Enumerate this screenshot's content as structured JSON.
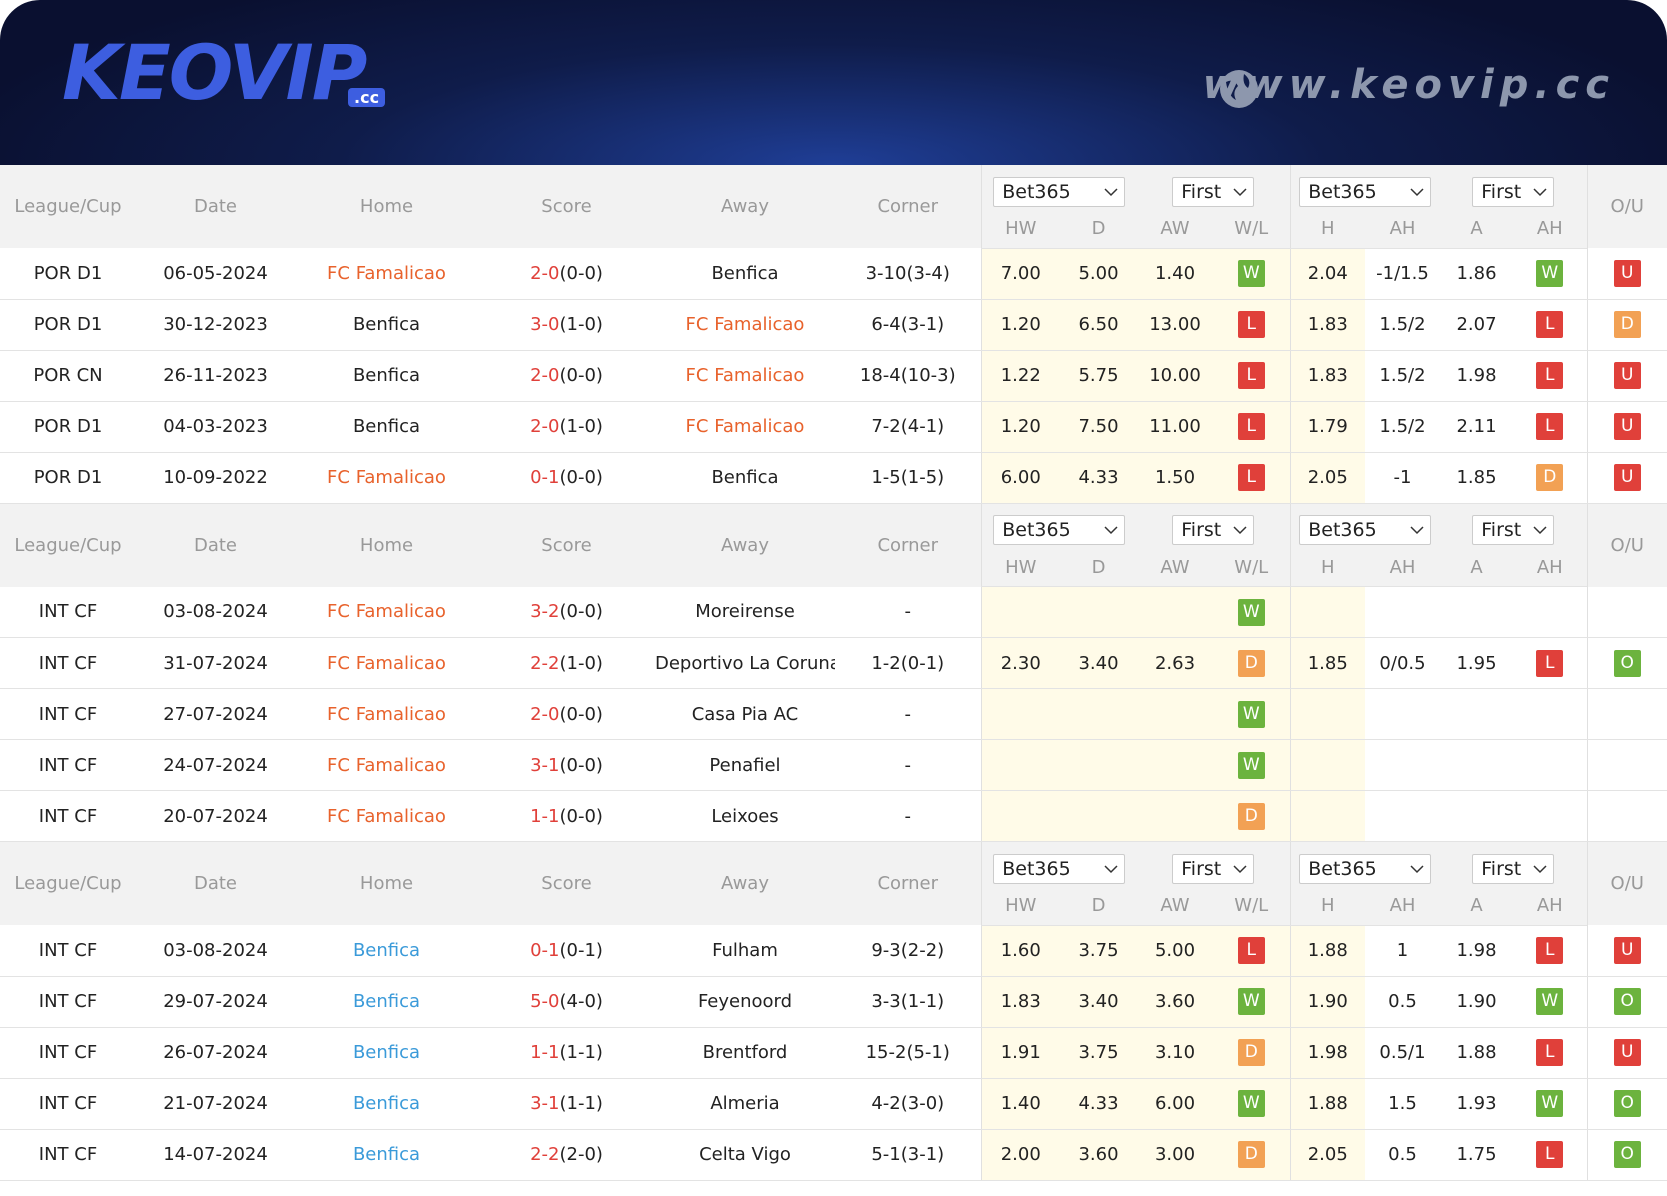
{
  "header": {
    "logo": "KEOVIP",
    "logo_sub": ".cc",
    "url": "www.keovip.cc"
  },
  "badge_colors": {
    "W": "#6cb33e",
    "L": "#e0403a",
    "D": "#f2a154",
    "U": "#e0403a",
    "O": "#6cb33e"
  },
  "tables": [
    {
      "highlight_color": "#e8622c",
      "header": {
        "columns": [
          "League/Cup",
          "Date",
          "Home",
          "Score",
          "Away",
          "Corner"
        ],
        "bookmakers": [
          "Bet365",
          "First",
          "Bet365",
          "First"
        ],
        "odds": [
          "HW",
          "D",
          "AW",
          "W/L",
          "H",
          "AH",
          "A",
          "AH"
        ],
        "ou": "O/U"
      },
      "rows": [
        {
          "highlight": "home",
          "cells": [
            "POR D1",
            "06-05-2024",
            "FC Famalicao",
            "2-0",
            "(0-0)",
            "Benfica",
            "3-10(3-4)",
            "7.00",
            "5.00",
            "1.40",
            "W",
            "2.04",
            "-1/1.5",
            "1.86",
            "W",
            "U"
          ]
        },
        {
          "highlight": "away",
          "cells": [
            "POR D1",
            "30-12-2023",
            "Benfica",
            "3-0",
            "(1-0)",
            "FC Famalicao",
            "6-4(3-1)",
            "1.20",
            "6.50",
            "13.00",
            "L",
            "1.83",
            "1.5/2",
            "2.07",
            "L",
            "D"
          ]
        },
        {
          "highlight": "away",
          "cells": [
            "POR CN",
            "26-11-2023",
            "Benfica",
            "2-0",
            "(0-0)",
            "FC Famalicao",
            "18-4(10-3)",
            "1.22",
            "5.75",
            "10.00",
            "L",
            "1.83",
            "1.5/2",
            "1.98",
            "L",
            "U"
          ]
        },
        {
          "highlight": "away",
          "cells": [
            "POR D1",
            "04-03-2023",
            "Benfica",
            "2-0",
            "(1-0)",
            "FC Famalicao",
            "7-2(4-1)",
            "1.20",
            "7.50",
            "11.00",
            "L",
            "1.79",
            "1.5/2",
            "2.11",
            "L",
            "U"
          ]
        },
        {
          "highlight": "home",
          "cells": [
            "POR D1",
            "10-09-2022",
            "FC Famalicao",
            "0-1",
            "(0-0)",
            "Benfica",
            "1-5(1-5)",
            "6.00",
            "4.33",
            "1.50",
            "L",
            "2.05",
            "-1",
            "1.85",
            "D",
            "U"
          ]
        }
      ]
    },
    {
      "highlight_color": "#e8622c",
      "header": {
        "columns": [
          "League/Cup",
          "Date",
          "Home",
          "Score",
          "Away",
          "Corner"
        ],
        "bookmakers": [
          "Bet365",
          "First",
          "Bet365",
          "First"
        ],
        "odds": [
          "HW",
          "D",
          "AW",
          "W/L",
          "H",
          "AH",
          "A",
          "AH"
        ],
        "ou": "O/U"
      },
      "rows": [
        {
          "highlight": "home",
          "cells": [
            "INT CF",
            "03-08-2024",
            "FC Famalicao",
            "3-2",
            "(0-0)",
            "Moreirense",
            "-",
            null,
            null,
            null,
            "W",
            null,
            null,
            null,
            null,
            null
          ]
        },
        {
          "highlight": "home",
          "cells": [
            "INT CF",
            "31-07-2024",
            "FC Famalicao",
            "2-2",
            "(1-0)",
            "Deportivo La Coruna",
            "1-2(0-1)",
            "2.30",
            "3.40",
            "2.63",
            "D",
            "1.85",
            "0/0.5",
            "1.95",
            "L",
            "O"
          ]
        },
        {
          "highlight": "home",
          "cells": [
            "INT CF",
            "27-07-2024",
            "FC Famalicao",
            "2-0",
            "(0-0)",
            "Casa Pia AC",
            "-",
            null,
            null,
            null,
            "W",
            null,
            null,
            null,
            null,
            null
          ]
        },
        {
          "highlight": "home",
          "cells": [
            "INT CF",
            "24-07-2024",
            "FC Famalicao",
            "3-1",
            "(0-0)",
            "Penafiel",
            "-",
            null,
            null,
            null,
            "W",
            null,
            null,
            null,
            null,
            null
          ]
        },
        {
          "highlight": "home",
          "cells": [
            "INT CF",
            "20-07-2024",
            "FC Famalicao",
            "1-1",
            "(0-0)",
            "Leixoes",
            "-",
            null,
            null,
            null,
            "D",
            null,
            null,
            null,
            null,
            null
          ]
        }
      ]
    },
    {
      "highlight_color": "#3a9ad9",
      "header": {
        "columns": [
          "League/Cup",
          "Date",
          "Home",
          "Score",
          "Away",
          "Corner"
        ],
        "bookmakers": [
          "Bet365",
          "First",
          "Bet365",
          "First"
        ],
        "odds": [
          "HW",
          "D",
          "AW",
          "W/L",
          "H",
          "AH",
          "A",
          "AH"
        ],
        "ou": "O/U"
      },
      "rows": [
        {
          "highlight": "home",
          "cells": [
            "INT CF",
            "03-08-2024",
            "Benfica",
            "0-1",
            "(0-1)",
            "Fulham",
            "9-3(2-2)",
            "1.60",
            "3.75",
            "5.00",
            "L",
            "1.88",
            "1",
            "1.98",
            "L",
            "U"
          ]
        },
        {
          "highlight": "home",
          "cells": [
            "INT CF",
            "29-07-2024",
            "Benfica",
            "5-0",
            "(4-0)",
            "Feyenoord",
            "3-3(1-1)",
            "1.83",
            "3.40",
            "3.60",
            "W",
            "1.90",
            "0.5",
            "1.90",
            "W",
            "O"
          ]
        },
        {
          "highlight": "home",
          "cells": [
            "INT CF",
            "26-07-2024",
            "Benfica",
            "1-1",
            "(1-1)",
            "Brentford",
            "15-2(5-1)",
            "1.91",
            "3.75",
            "3.10",
            "D",
            "1.98",
            "0.5/1",
            "1.88",
            "L",
            "U"
          ]
        },
        {
          "highlight": "home",
          "cells": [
            "INT CF",
            "21-07-2024",
            "Benfica",
            "3-1",
            "(1-1)",
            "Almeria",
            "4-2(3-0)",
            "1.40",
            "4.33",
            "6.00",
            "W",
            "1.88",
            "1.5",
            "1.93",
            "W",
            "O"
          ]
        },
        {
          "highlight": "home",
          "cells": [
            "INT CF",
            "14-07-2024",
            "Benfica",
            "2-2",
            "(2-0)",
            "Celta Vigo",
            "5-1(3-1)",
            "2.00",
            "3.60",
            "3.00",
            "D",
            "2.05",
            "0.5",
            "1.75",
            "L",
            "O"
          ]
        }
      ]
    }
  ]
}
